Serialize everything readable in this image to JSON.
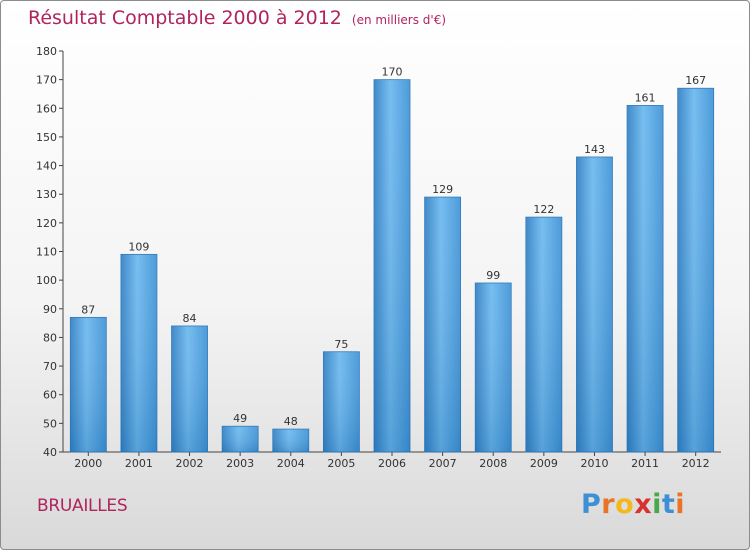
{
  "title": "Résultat Comptable 2000 à 2012",
  "subtitle": "(en milliers d'€)",
  "commune": "BRUAILLES",
  "logo": {
    "letters": [
      "P",
      "r",
      "o",
      "x",
      "i",
      "t",
      "i"
    ],
    "colors": [
      "#3d8fd6",
      "#e8742a",
      "#f2b91f",
      "#d8312e",
      "#4aa84a",
      "#3d8fd6",
      "#e8742a"
    ]
  },
  "colors": {
    "bar": "#4a9fe0",
    "bar_light": "#6bb8ef",
    "bar_dark": "#2f7fc4",
    "title": "#b0245e"
  },
  "chart_data": {
    "type": "bar",
    "title": "Résultat Comptable 2000 à 2012",
    "categories": [
      "2000",
      "2001",
      "2002",
      "2003",
      "2004",
      "2005",
      "2006",
      "2007",
      "2008",
      "2009",
      "2010",
      "2011",
      "2012"
    ],
    "values": [
      87,
      109,
      84,
      49,
      48,
      75,
      170,
      129,
      99,
      122,
      143,
      161,
      167
    ],
    "ylim": [
      40,
      180
    ],
    "yticks": [
      40,
      50,
      60,
      70,
      80,
      90,
      100,
      110,
      120,
      130,
      140,
      150,
      160,
      170,
      180
    ],
    "grid": false,
    "xlabel": "",
    "ylabel": ""
  }
}
